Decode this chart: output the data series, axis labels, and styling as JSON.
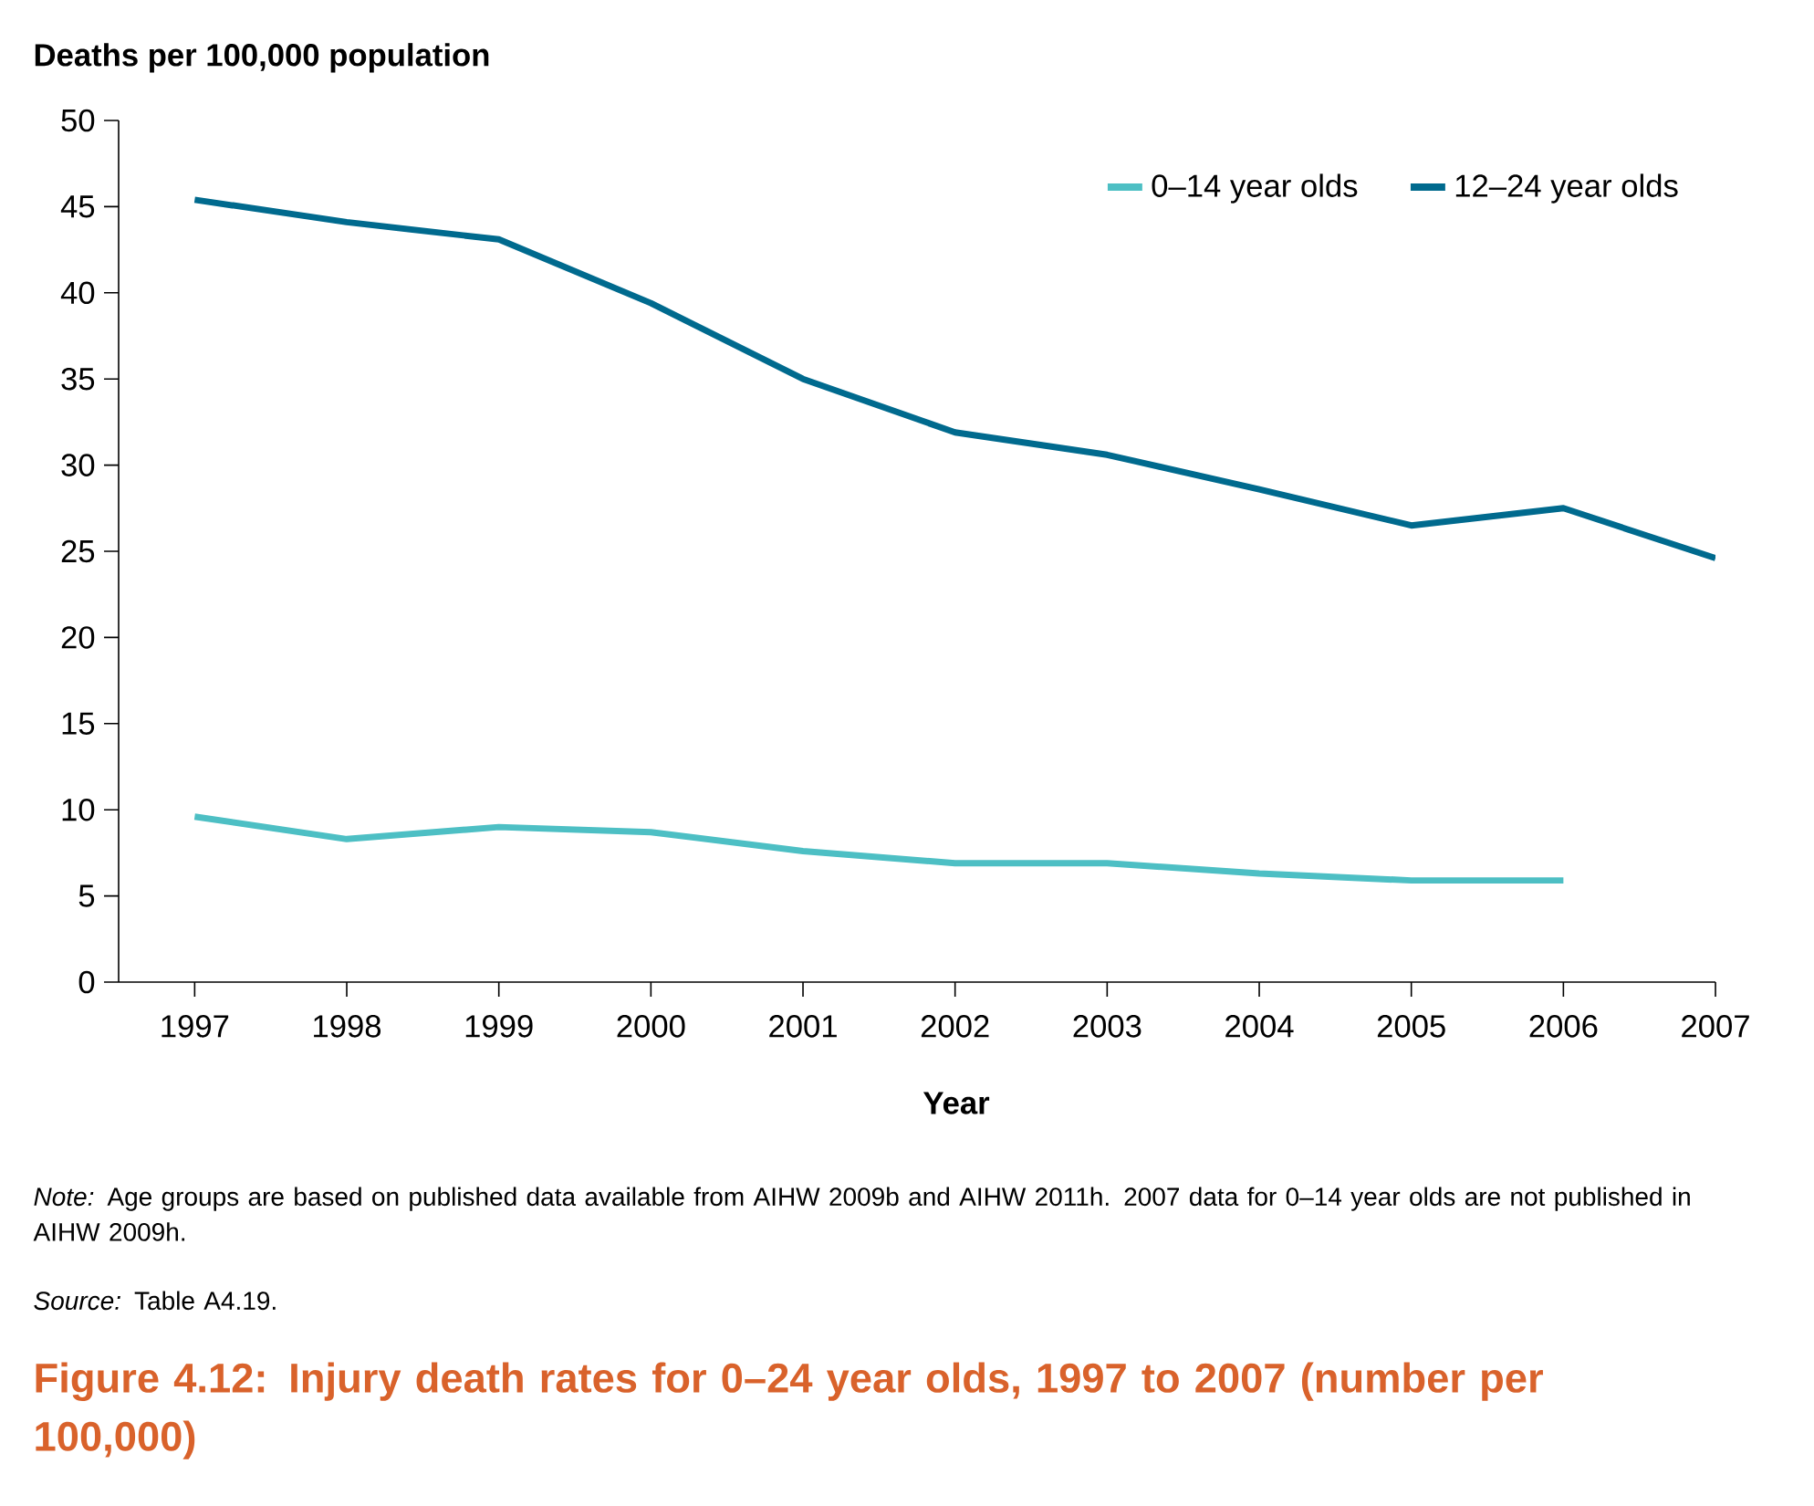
{
  "chart_data": {
    "type": "line",
    "title": "Figure 4.12: Injury death rates for 0–24 year olds, 1997 to 2007 (number per 100,000)",
    "ylabel": "Deaths per 100,000 population",
    "xlabel": "Year",
    "x": [
      1997,
      1998,
      1999,
      2000,
      2001,
      2002,
      2003,
      2004,
      2005,
      2006,
      2007
    ],
    "series": [
      {
        "name": "0–14 year olds",
        "color": "#4dbfc4",
        "values": [
          9.6,
          8.3,
          9.0,
          8.7,
          7.6,
          6.9,
          6.9,
          6.3,
          5.9,
          5.9,
          null
        ]
      },
      {
        "name": "12–24 year olds",
        "color": "#006a8e",
        "values": [
          45.4,
          44.1,
          43.1,
          39.4,
          35.0,
          31.9,
          30.6,
          28.6,
          26.5,
          27.5,
          24.6
        ]
      }
    ],
    "xlim": [
      1996.5,
      2007
    ],
    "ylim": [
      0,
      50
    ],
    "xticks": [
      1997,
      1998,
      1999,
      2000,
      2001,
      2002,
      2003,
      2004,
      2005,
      2006,
      2007
    ],
    "yticks": [
      0,
      5,
      10,
      15,
      20,
      25,
      30,
      35,
      40,
      45,
      50
    ],
    "legend": "top right",
    "grid": false,
    "marker": "none",
    "line_style": "solid",
    "annotations": [
      "*Note:* Age groups are based on published data available from AIHW 2009b and AIHW 2011h. 2007 data for 0–14 year olds are not published in AIHW 2009h.",
      "*Source:* Table A4.19."
    ]
  }
}
